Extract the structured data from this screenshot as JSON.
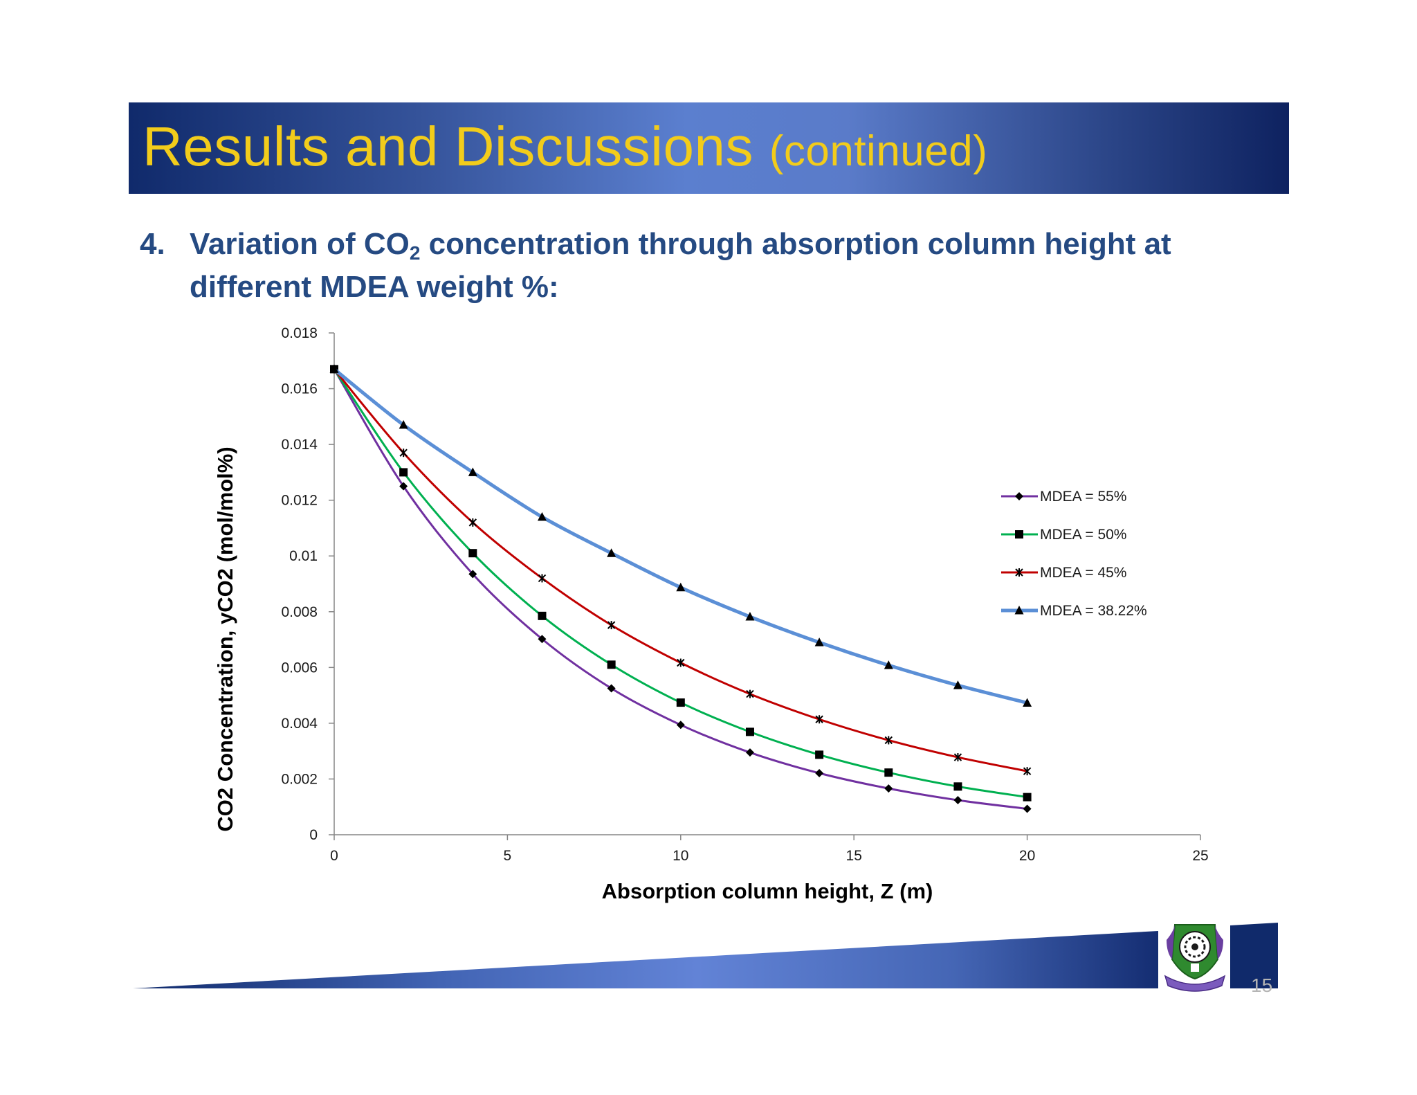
{
  "slide": {
    "title_main": "Results and Discussions",
    "title_sub": "(continued)",
    "subtitle_number": "4.",
    "subtitle_part1": "Variation of CO",
    "subtitle_sub": "2",
    "subtitle_part2": " concentration through absorption column height at different MDEA weight %:",
    "page_number": "15",
    "colors": {
      "title_text": "#f2cc1b",
      "subtitle_text": "#254a82",
      "banner_dark": "#102a6b",
      "banner_light": "#5b7fcf"
    },
    "logo_icon": "university-crest-icon"
  },
  "chart_data": {
    "type": "line",
    "title": "",
    "xlabel": "Absorption column height, Z (m)",
    "ylabel": "CO2 Concentration, yCO2 (mol/mol%)",
    "xlim": [
      0,
      25
    ],
    "ylim": [
      0,
      0.018
    ],
    "x_ticks": [
      "0",
      "5",
      "10",
      "15",
      "20",
      "25"
    ],
    "y_ticks": [
      "0",
      "0.002",
      "0.004",
      "0.006",
      "0.008",
      "0.01",
      "0.012",
      "0.014",
      "0.016",
      "0.018"
    ],
    "grid": false,
    "legend_position": "right",
    "x": [
      0,
      2,
      4,
      6,
      8,
      10,
      12,
      14,
      16,
      18,
      20
    ],
    "series": [
      {
        "name": "MDEA = 55%",
        "color": "#7030a0",
        "marker": "diamond",
        "values": [
          0.0167,
          0.0125,
          0.00935,
          0.00702,
          0.00525,
          0.00394,
          0.00295,
          0.00221,
          0.00166,
          0.00124,
          0.00093
        ]
      },
      {
        "name": "MDEA = 50%",
        "color": "#00b050",
        "marker": "square",
        "values": [
          0.0167,
          0.013,
          0.0101,
          0.00785,
          0.0061,
          0.00474,
          0.00369,
          0.00287,
          0.00223,
          0.00173,
          0.00135
        ]
      },
      {
        "name": "MDEA = 45%",
        "color": "#c00000",
        "marker": "star",
        "values": [
          0.0167,
          0.0137,
          0.0112,
          0.0092,
          0.00752,
          0.00617,
          0.00505,
          0.00414,
          0.00339,
          0.00278,
          0.00228
        ]
      },
      {
        "name": "MDEA = 38.22%",
        "color": "#5b8fd6",
        "marker": "triangle",
        "values": [
          0.0167,
          0.0147,
          0.013,
          0.0114,
          0.0101,
          0.00887,
          0.00782,
          0.0069,
          0.00608,
          0.00536,
          0.00473
        ]
      }
    ]
  }
}
